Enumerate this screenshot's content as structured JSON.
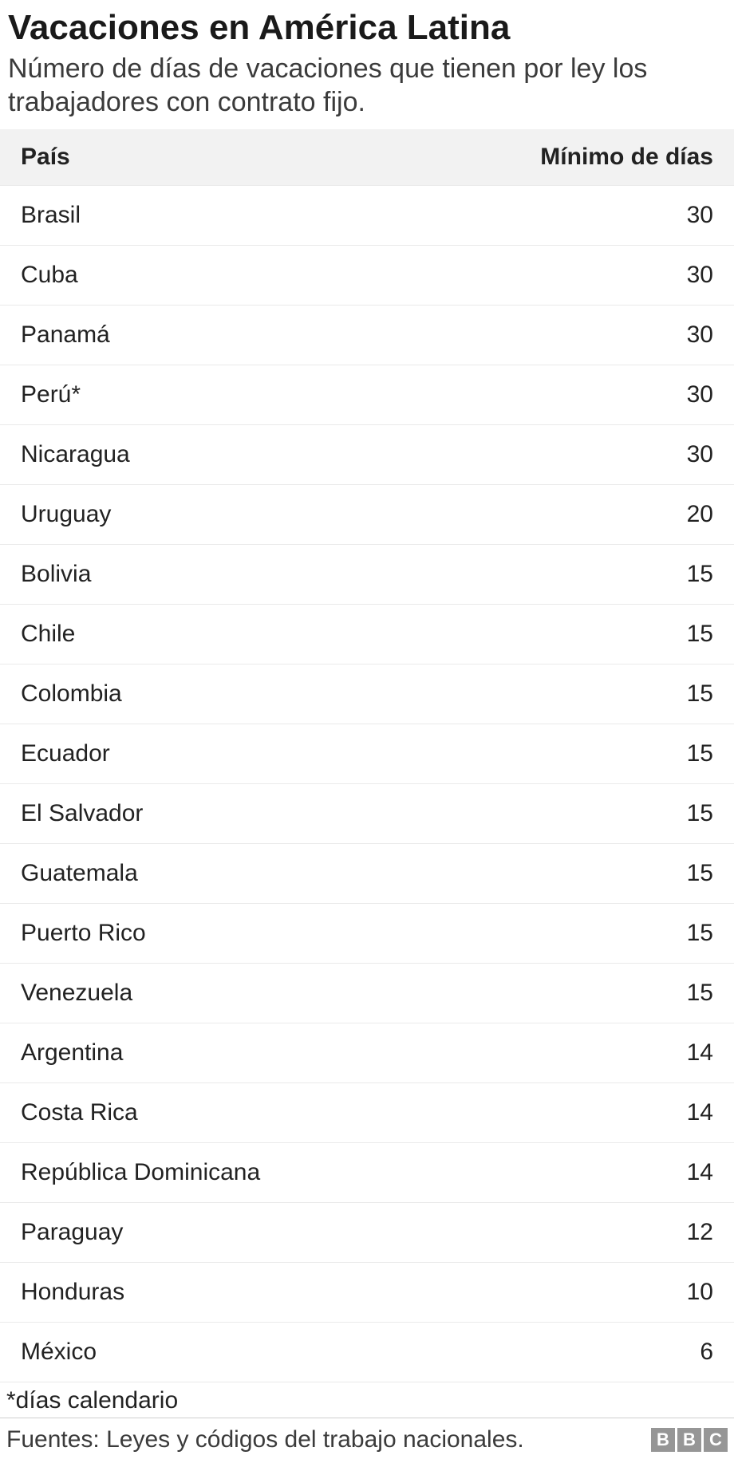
{
  "title": "Vacaciones en América Latina",
  "subtitle": "Número de días de vacaciones que tienen por ley los trabajadores con contrato fijo.",
  "table": {
    "type": "table",
    "columns": [
      "País",
      "Mínimo de días"
    ],
    "column_align": [
      "left",
      "right"
    ],
    "rows": [
      [
        "Brasil",
        "30"
      ],
      [
        "Cuba",
        "30"
      ],
      [
        "Panamá",
        "30"
      ],
      [
        "Perú*",
        "30"
      ],
      [
        "Nicaragua",
        "30"
      ],
      [
        "Uruguay",
        "20"
      ],
      [
        "Bolivia",
        "15"
      ],
      [
        "Chile",
        "15"
      ],
      [
        "Colombia",
        "15"
      ],
      [
        "Ecuador",
        "15"
      ],
      [
        "El Salvador",
        "15"
      ],
      [
        "Guatemala",
        "15"
      ],
      [
        "Puerto Rico",
        "15"
      ],
      [
        "Venezuela",
        "15"
      ],
      [
        "Argentina",
        "14"
      ],
      [
        "Costa Rica",
        "14"
      ],
      [
        "República Dominicana",
        "14"
      ],
      [
        "Paraguay",
        "12"
      ],
      [
        "Honduras",
        "10"
      ],
      [
        "México",
        "6"
      ]
    ],
    "header_bg": "#f2f2f2",
    "row_border_color": "#eaeaea",
    "header_fontsize": 30,
    "cell_fontsize": 30,
    "header_fontweight": 700,
    "cell_fontweight": 400
  },
  "footnote": "*días calendario",
  "source": "Fuentes: Leyes y códigos del trabajo nacionales.",
  "logo": {
    "letters": [
      "B",
      "B",
      "C"
    ],
    "block_bg": "#969696",
    "block_fg": "#ffffff"
  },
  "colors": {
    "background": "#ffffff",
    "title": "#1a1a1a",
    "subtitle": "#3b3b3b",
    "text": "#222222",
    "divider": "#cfcfcf"
  },
  "typography": {
    "title_fontsize": 44,
    "title_fontweight": 700,
    "subtitle_fontsize": 34,
    "subtitle_fontweight": 400,
    "footnote_fontsize": 30,
    "source_fontsize": 30,
    "font_family": "Arial, Helvetica, sans-serif"
  }
}
